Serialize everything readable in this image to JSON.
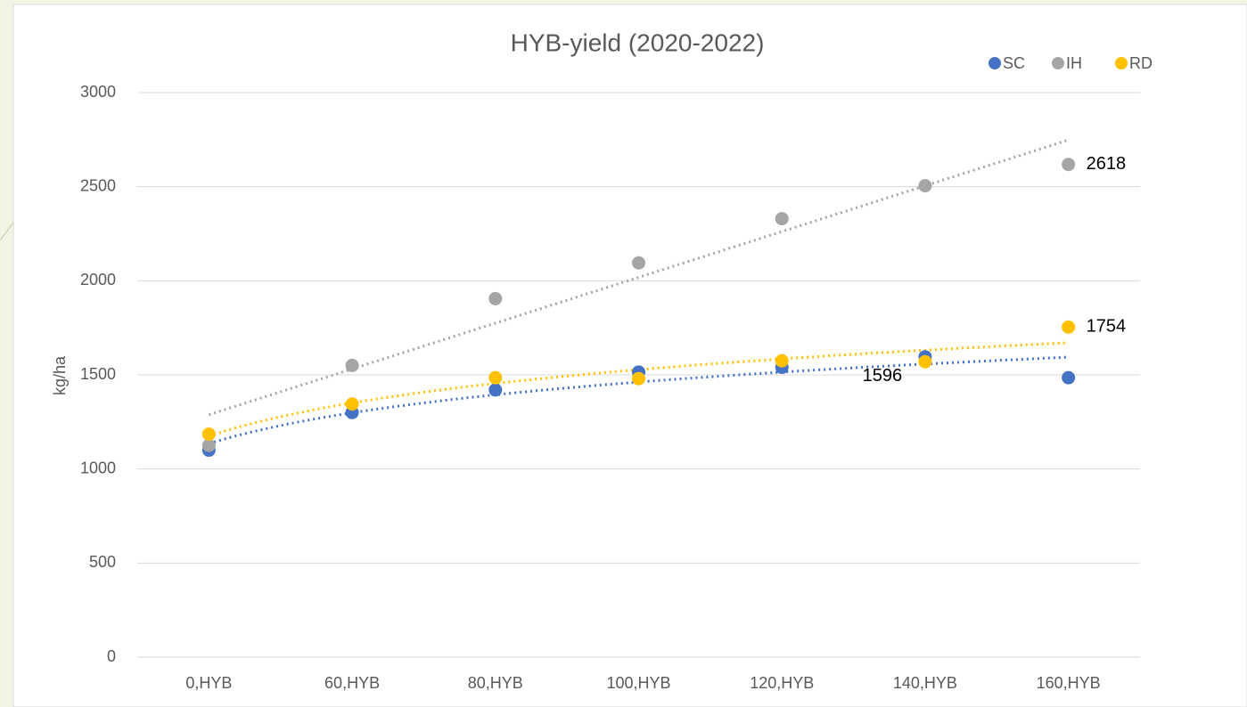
{
  "chart_data": {
    "type": "scatter",
    "title": "HYB-yield (2020-2022)",
    "y_label": "kg/ha",
    "categories": [
      "0,HYB",
      "60,HYB",
      "80,HYB",
      "100,HYB",
      "120,HYB",
      "140,HYB",
      "160,HYB"
    ],
    "series": [
      {
        "name": "SC",
        "color": "#4472c4",
        "trendline": "log",
        "values": [
          1100,
          1300,
          1420,
          1515,
          1540,
          1596,
          1485
        ],
        "data_labels": [
          5
        ]
      },
      {
        "name": "IH",
        "color": "#a5a5a5",
        "trendline": "linear",
        "values": [
          1125,
          1550,
          1905,
          2095,
          2330,
          2505,
          2618
        ],
        "data_labels": [
          6
        ]
      },
      {
        "name": "RD",
        "color": "#ffc000",
        "trendline": "log",
        "values": [
          1185,
          1345,
          1485,
          1480,
          1575,
          1570,
          1754
        ],
        "data_labels": [
          6
        ]
      }
    ],
    "ylim": [
      0,
      3000
    ],
    "yticks": [
      0,
      500,
      1000,
      1500,
      2000,
      2500,
      3000
    ],
    "grid": true,
    "legend": "top-right"
  }
}
